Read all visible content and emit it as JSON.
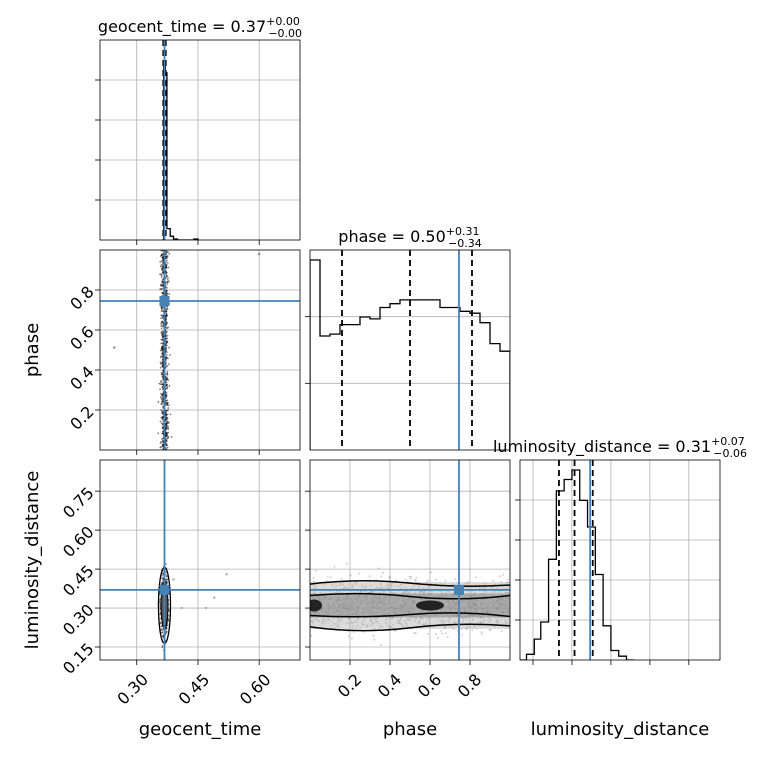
{
  "chart_data": [
    {
      "type": "histogram",
      "panel": "geocent_time-marginal",
      "title_param": "geocent_time",
      "title_value": "0.37",
      "title_plus": "+0.00",
      "title_minus": "−0.00",
      "xlim": [
        0.21,
        0.7
      ],
      "xticks": [
        0.3,
        0.45,
        0.6
      ],
      "bin_edges": [
        0.362,
        0.366,
        0.37,
        0.374,
        0.378,
        0.382,
        0.386,
        0.39,
        0.4,
        0.44,
        0.45
      ],
      "heights": [
        0.0,
        0.94,
        0.88,
        0.06,
        0.06,
        0.02,
        0.02,
        0.005,
        0.0,
        0.005
      ],
      "quantiles": [
        0.365,
        0.368,
        0.371
      ],
      "truth": 0.368
    },
    {
      "type": "histogram",
      "panel": "phase-marginal",
      "title_param": "phase",
      "title_value": "0.50",
      "title_plus": "+0.31",
      "title_minus": "−0.34",
      "xlim": [
        0.0,
        1.0
      ],
      "bin_edges": [
        0.0,
        0.05,
        0.1,
        0.15,
        0.2,
        0.25,
        0.3,
        0.35,
        0.4,
        0.45,
        0.5,
        0.55,
        0.6,
        0.65,
        0.7,
        0.75,
        0.8,
        0.85,
        0.9,
        0.95,
        1.0
      ],
      "heights": [
        1.0,
        0.6,
        0.61,
        0.66,
        0.66,
        0.7,
        0.69,
        0.75,
        0.77,
        0.79,
        0.79,
        0.79,
        0.79,
        0.75,
        0.75,
        0.73,
        0.72,
        0.67,
        0.56,
        0.52
      ],
      "quantiles": [
        0.16,
        0.5,
        0.81
      ],
      "truth": 0.745
    },
    {
      "type": "histogram",
      "panel": "luminosity_distance-marginal",
      "title_param": "luminosity_distance",
      "title_value": "0.31",
      "title_plus": "+0.07",
      "title_minus": "−0.06",
      "xlim": [
        0.1,
        0.87
      ],
      "xticks": [
        0.15,
        0.3,
        0.45,
        0.6,
        0.75
      ],
      "bin_edges": [
        0.1,
        0.125,
        0.155,
        0.18,
        0.21,
        0.24,
        0.27,
        0.3,
        0.33,
        0.36,
        0.39,
        0.42,
        0.45,
        0.48,
        0.51,
        0.54
      ],
      "heights": [
        0.0,
        0.03,
        0.11,
        0.2,
        0.53,
        0.89,
        0.95,
        1.0,
        0.84,
        0.7,
        0.45,
        0.18,
        0.05,
        0.02,
        0.0
      ],
      "quantiles": [
        0.25,
        0.31,
        0.38
      ],
      "truth": 0.37
    },
    {
      "type": "scatter",
      "panel": "phase-vs-geocent_time",
      "xlim": [
        0.21,
        0.7
      ],
      "ylim": [
        0.0,
        1.0
      ],
      "yticks": [
        0.2,
        0.4,
        0.6,
        0.8
      ],
      "truth": [
        0.368,
        0.745
      ],
      "column_center": 0.368,
      "column_halfwidth": 0.01,
      "outliers": [
        [
          0.245,
          0.512
        ],
        [
          0.6,
          0.98
        ]
      ]
    },
    {
      "type": "scatter",
      "panel": "luminosity_distance-vs-geocent_time",
      "xlim": [
        0.21,
        0.7
      ],
      "ylim": [
        0.1,
        0.87
      ],
      "xticks": [
        0.3,
        0.45,
        0.6
      ],
      "yticks": [
        0.15,
        0.3,
        0.45,
        0.6,
        0.75
      ],
      "truth": [
        0.368,
        0.37
      ],
      "outliers": [
        [
          0.45,
          0.37
        ],
        [
          0.52,
          0.43
        ],
        [
          0.41,
          0.3
        ],
        [
          0.49,
          0.34
        ],
        [
          0.39,
          0.41
        ],
        [
          0.47,
          0.3
        ]
      ]
    },
    {
      "type": "scatter",
      "panel": "luminosity_distance-vs-phase",
      "xlim": [
        0.0,
        1.0
      ],
      "ylim": [
        0.1,
        0.87
      ],
      "xticks": [
        0.2,
        0.4,
        0.6,
        0.8
      ],
      "truth": [
        0.745,
        0.37
      ],
      "band_center": 0.31,
      "band_halfwidth": 0.09
    }
  ],
  "labels": {
    "x_geocent": "geocent_time",
    "x_phase": "phase",
    "x_lumdist": "luminosity_distance",
    "y_phase": "phase",
    "y_lumdist": "luminosity_distance"
  },
  "colors": {
    "truth": "#4682b4",
    "hist": "#000000",
    "grid": "#b0b0b0",
    "points": "#000000"
  }
}
